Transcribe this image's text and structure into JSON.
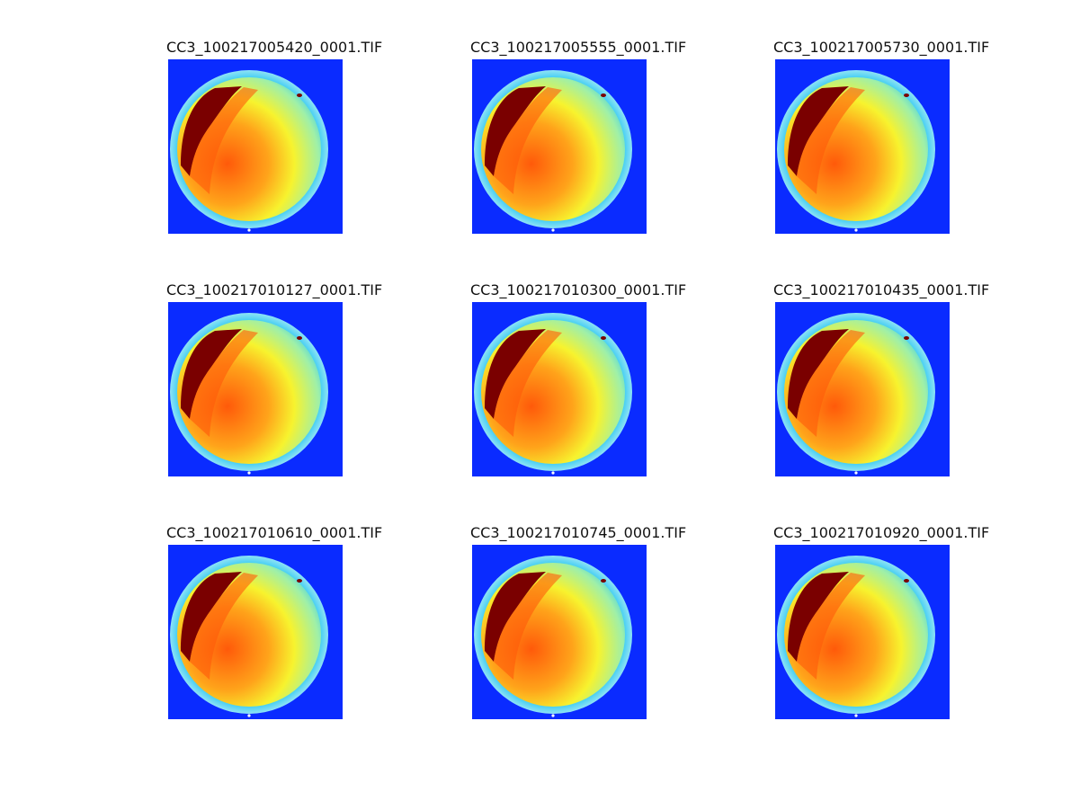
{
  "figure": {
    "panels": [
      {
        "title": "CC3_100217005420_0001.TIF"
      },
      {
        "title": "CC3_100217005555_0001.TIF"
      },
      {
        "title": "CC3_100217005730_0001.TIF"
      },
      {
        "title": "CC3_100217010127_0001.TIF"
      },
      {
        "title": "CC3_100217010300_0001.TIF"
      },
      {
        "title": "CC3_100217010435_0001.TIF"
      },
      {
        "title": "CC3_100217010610_0001.TIF"
      },
      {
        "title": "CC3_100217010745_0001.TIF"
      },
      {
        "title": "CC3_100217010920_0001.TIF"
      }
    ],
    "colormap": {
      "background": "#0a2bff",
      "rim": "#33c9f2",
      "cool": "#9ff0a8",
      "mid": "#f7f32e",
      "warm": "#ffa31a",
      "hot": "#ff5a0a",
      "hottest": "#7a0000"
    }
  }
}
